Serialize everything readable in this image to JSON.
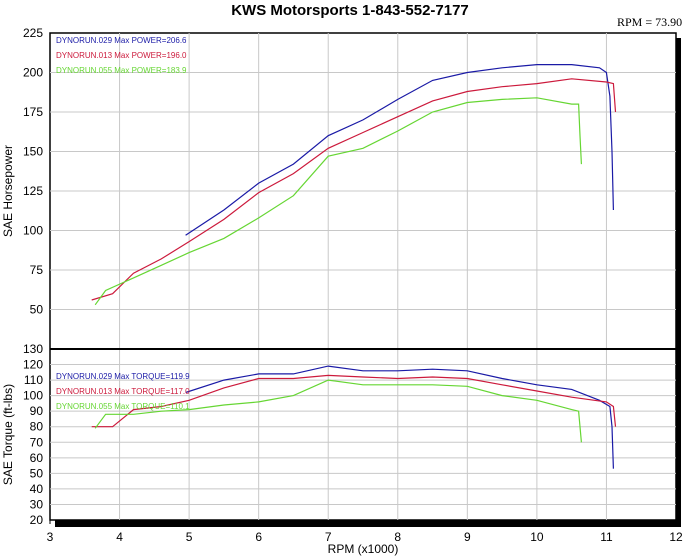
{
  "title": "KWS Motorsports 1-843-552-7177",
  "readout": "RPM = 73.90",
  "chart_data": [
    {
      "type": "line",
      "ylabel": "SAE Horsepower",
      "ylim": [
        25,
        225
      ],
      "yticks": [
        "50",
        "75",
        "100",
        "125",
        "150",
        "175",
        "200",
        "225"
      ],
      "xlim": [
        3,
        12
      ],
      "grid": true,
      "legend_placement": "top-left",
      "series": [
        {
          "name": "DYNORUN.029   Max POWER=206.6",
          "color": "#1a1aa6",
          "points": [
            [
              4.95,
              97
            ],
            [
              5.5,
              113
            ],
            [
              6,
              130
            ],
            [
              6.5,
              142
            ],
            [
              7,
              160
            ],
            [
              7.5,
              170
            ],
            [
              8,
              183
            ],
            [
              8.5,
              195
            ],
            [
              9,
              200
            ],
            [
              9.5,
              203
            ],
            [
              10,
              205
            ],
            [
              10.5,
              205
            ],
            [
              10.9,
              203
            ],
            [
              11,
              200
            ],
            [
              11.05,
              185
            ],
            [
              11.08,
              150
            ],
            [
              11.1,
              113
            ]
          ]
        },
        {
          "name": "DYNORUN.013   Max POWER=196.0",
          "color": "#cc1a3c",
          "points": [
            [
              3.6,
              56
            ],
            [
              3.9,
              60
            ],
            [
              4.2,
              73
            ],
            [
              4.6,
              82
            ],
            [
              5,
              93
            ],
            [
              5.5,
              107
            ],
            [
              6,
              124
            ],
            [
              6.5,
              136
            ],
            [
              7,
              152
            ],
            [
              7.5,
              162
            ],
            [
              8,
              172
            ],
            [
              8.5,
              182
            ],
            [
              9,
              188
            ],
            [
              9.5,
              191
            ],
            [
              10,
              193
            ],
            [
              10.5,
              196
            ],
            [
              11,
              194
            ],
            [
              11.1,
              193
            ],
            [
              11.13,
              175
            ]
          ]
        },
        {
          "name": "DYNORUN.055   Max POWER=183.9",
          "color": "#66d633",
          "points": [
            [
              3.65,
              53
            ],
            [
              3.8,
              62
            ],
            [
              4.2,
              70
            ],
            [
              4.6,
              78
            ],
            [
              5,
              86
            ],
            [
              5.5,
              95
            ],
            [
              6,
              108
            ],
            [
              6.5,
              122
            ],
            [
              7,
              147
            ],
            [
              7.5,
              152
            ],
            [
              8,
              163
            ],
            [
              8.5,
              175
            ],
            [
              9,
              181
            ],
            [
              9.5,
              183
            ],
            [
              10,
              184
            ],
            [
              10.5,
              180
            ],
            [
              10.6,
              180
            ],
            [
              10.62,
              160
            ],
            [
              10.64,
              142
            ]
          ]
        }
      ]
    },
    {
      "type": "line",
      "ylabel": "SAE Torque (ft-lbs)",
      "xlabel": "RPM (x1000)",
      "ylim": [
        20,
        130
      ],
      "yticks": [
        "20",
        "30",
        "40",
        "50",
        "60",
        "70",
        "80",
        "90",
        "100",
        "110",
        "120",
        "130"
      ],
      "xlim": [
        3,
        12
      ],
      "xticks": [
        "3",
        "4",
        "5",
        "6",
        "7",
        "8",
        "9",
        "10",
        "11",
        "12"
      ],
      "grid": true,
      "legend_placement": "top-left",
      "series": [
        {
          "name": "DYNORUN.029   Max TORQUE=119.9",
          "color": "#1a1aa6",
          "points": [
            [
              4.95,
              102
            ],
            [
              5.5,
              110
            ],
            [
              6,
              114
            ],
            [
              6.5,
              114
            ],
            [
              7,
              119
            ],
            [
              7.5,
              116
            ],
            [
              8,
              116
            ],
            [
              8.5,
              117
            ],
            [
              9,
              116
            ],
            [
              9.5,
              111
            ],
            [
              10,
              107
            ],
            [
              10.5,
              104
            ],
            [
              10.9,
              97
            ],
            [
              11.05,
              93
            ],
            [
              11.08,
              80
            ],
            [
              11.1,
              53
            ]
          ]
        },
        {
          "name": "DYNORUN.013   Max TORQUE=117.0",
          "color": "#cc1a3c",
          "points": [
            [
              3.6,
              80
            ],
            [
              3.9,
              80
            ],
            [
              4.2,
              91
            ],
            [
              4.6,
              93
            ],
            [
              5,
              97
            ],
            [
              5.5,
              105
            ],
            [
              6,
              111
            ],
            [
              6.5,
              111
            ],
            [
              7,
              113
            ],
            [
              7.5,
              112
            ],
            [
              8,
              111
            ],
            [
              8.5,
              112
            ],
            [
              9,
              111
            ],
            [
              9.5,
              107
            ],
            [
              10,
              103
            ],
            [
              10.5,
              99
            ],
            [
              11,
              96
            ],
            [
              11.1,
              93
            ],
            [
              11.13,
              80
            ]
          ]
        },
        {
          "name": "DYNORUN.055   Max TORQUE=110.1",
          "color": "#66d633",
          "points": [
            [
              3.65,
              79
            ],
            [
              3.8,
              88
            ],
            [
              4.2,
              88
            ],
            [
              4.6,
              90
            ],
            [
              5,
              91
            ],
            [
              5.5,
              94
            ],
            [
              6,
              96
            ],
            [
              6.5,
              100
            ],
            [
              7,
              110
            ],
            [
              7.5,
              107
            ],
            [
              8,
              107
            ],
            [
              8.5,
              107
            ],
            [
              9,
              106
            ],
            [
              9.5,
              100
            ],
            [
              10,
              97
            ],
            [
              10.5,
              91
            ],
            [
              10.6,
              90
            ],
            [
              10.62,
              80
            ],
            [
              10.64,
              70
            ]
          ]
        }
      ]
    }
  ]
}
